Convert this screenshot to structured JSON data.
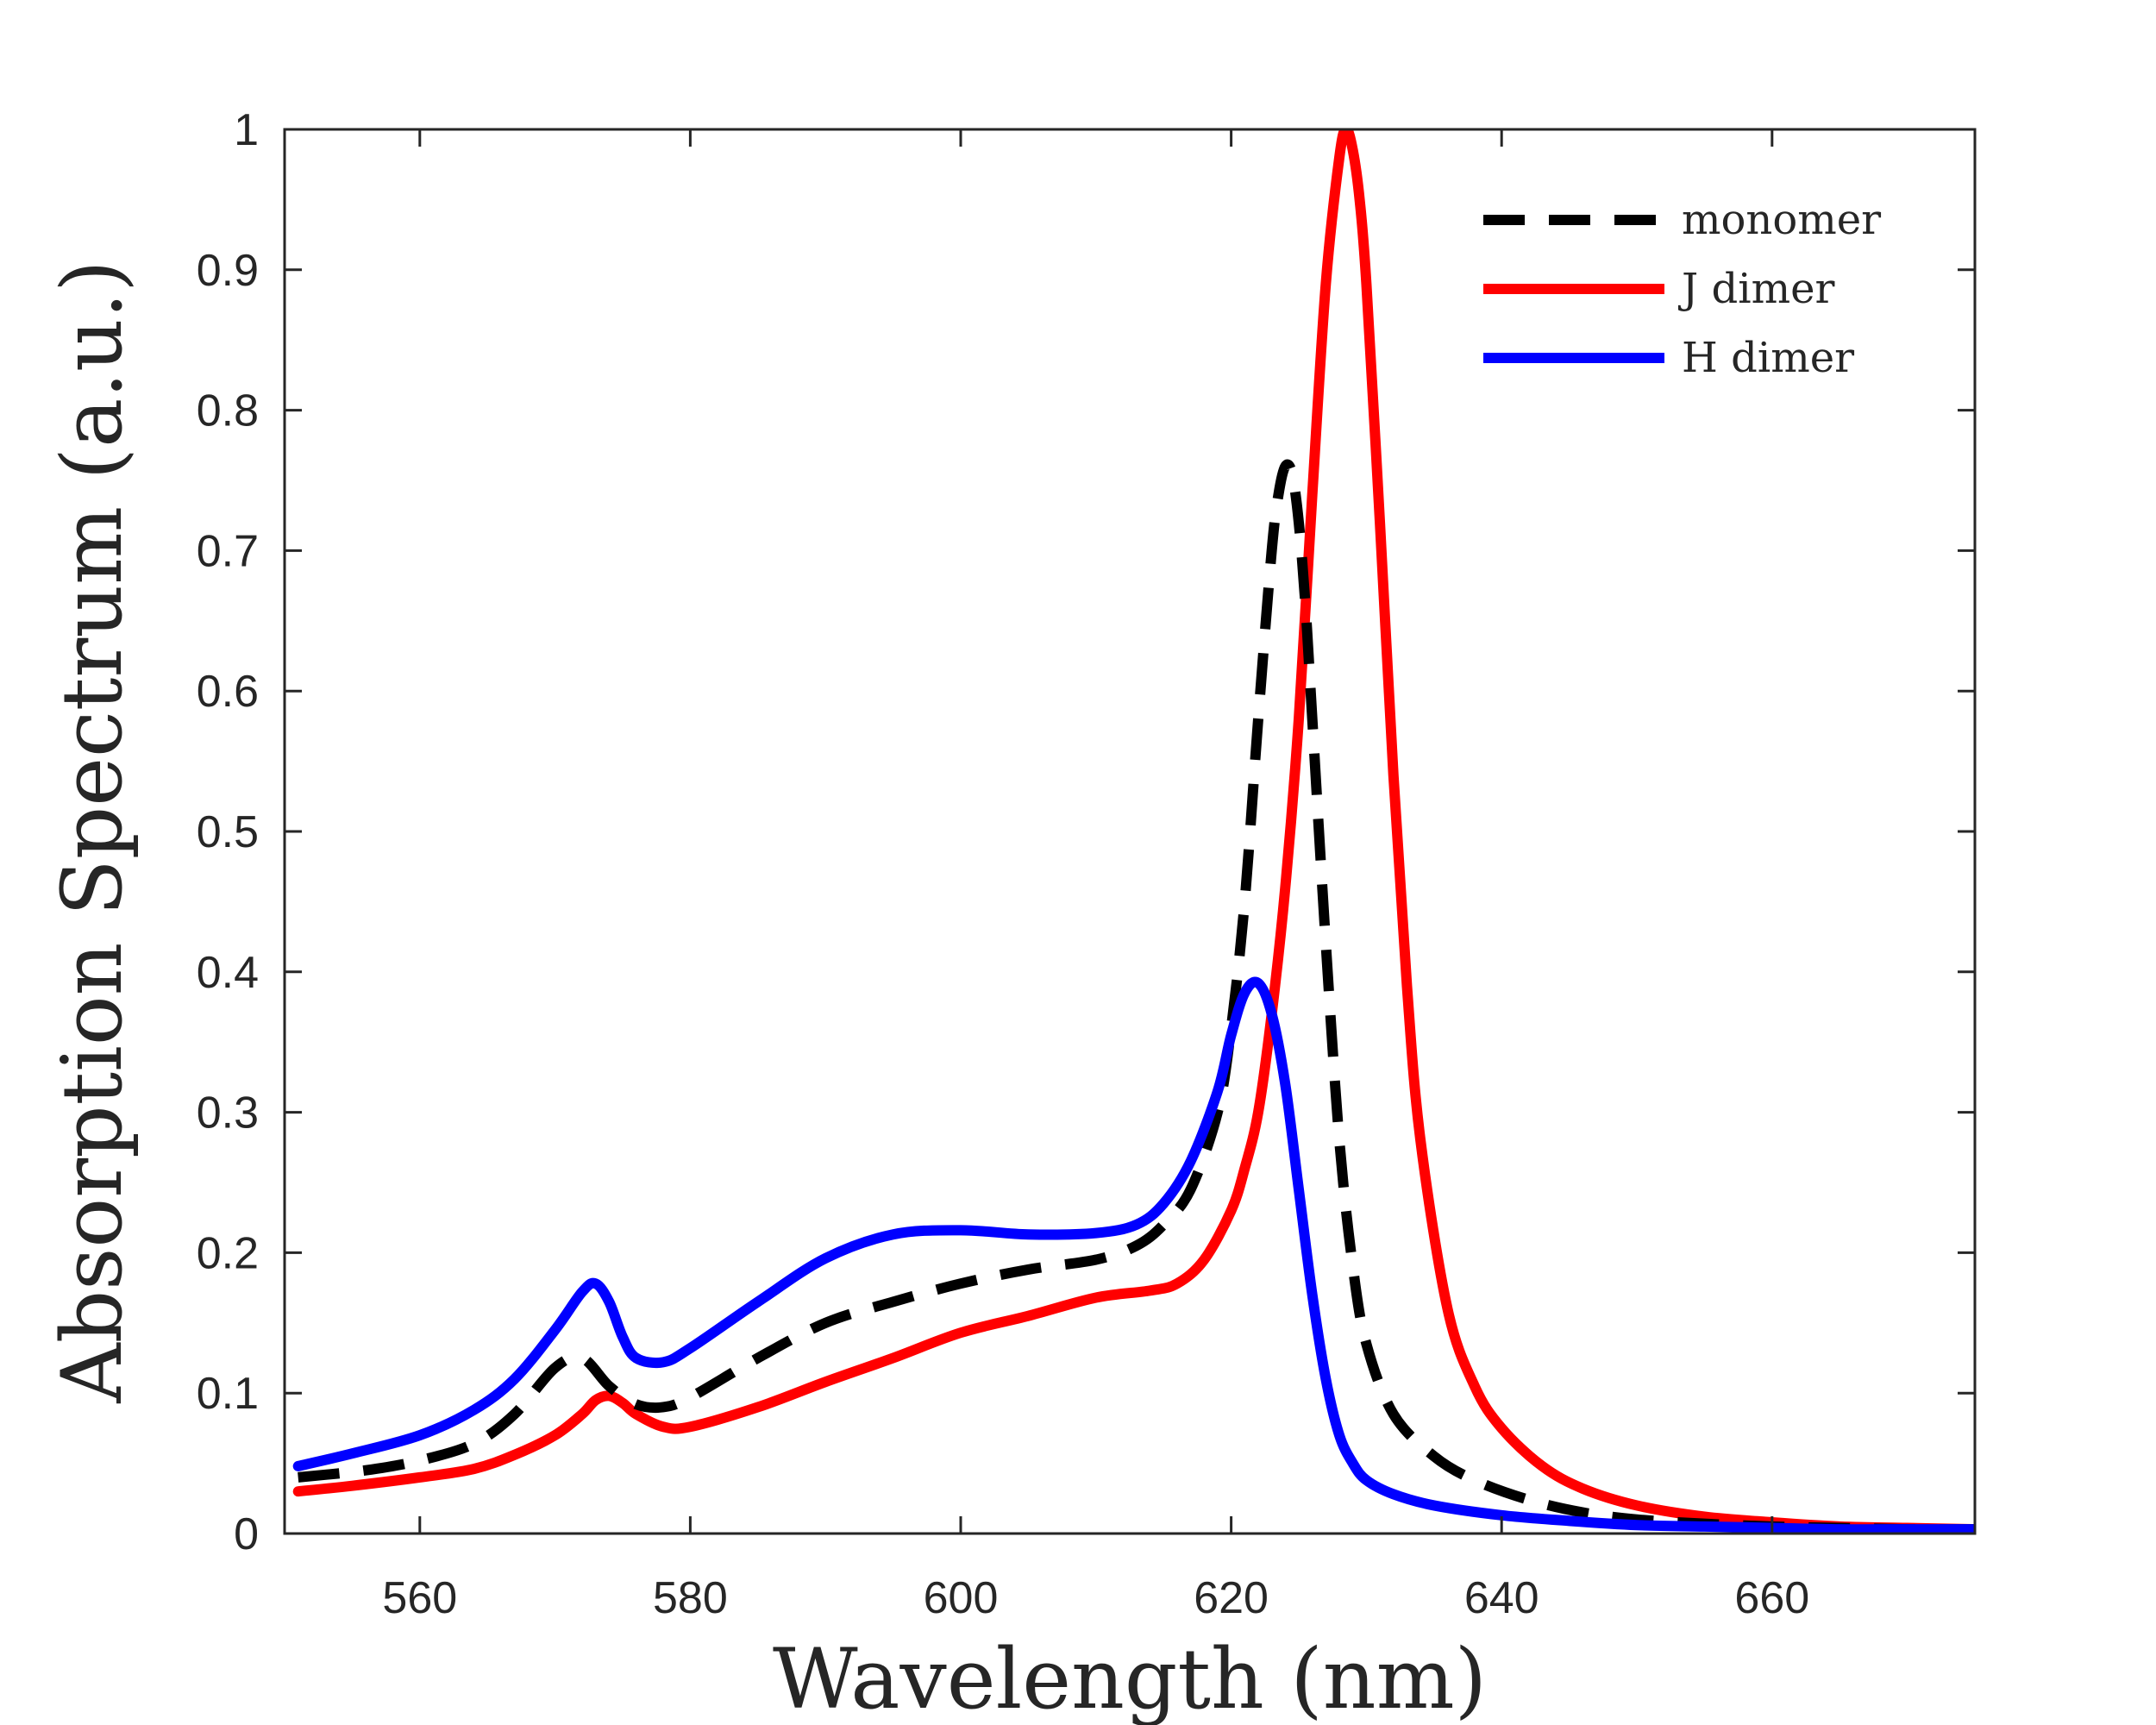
{
  "chart_data": {
    "type": "line",
    "xlabel": "Wavelength (nm)",
    "ylabel": "Absorption Spectrum (a.u.)",
    "xlim": [
      550,
      675
    ],
    "ylim": [
      0,
      1
    ],
    "xticks": [
      560,
      580,
      600,
      620,
      640,
      660
    ],
    "yticks": [
      0,
      0.1,
      0.2,
      0.3,
      0.4,
      0.5,
      0.6,
      0.7,
      0.8,
      0.9,
      1
    ],
    "ytick_labels": [
      "0",
      "0.1",
      "0.2",
      "0.3",
      "0.4",
      "0.5",
      "0.6",
      "0.7",
      "0.8",
      "0.9",
      "1"
    ],
    "grid": false,
    "legend_position": "top-right",
    "series": [
      {
        "name": "monomer",
        "color": "#000000",
        "dash": "dashed",
        "x": [
          551,
          556,
          560,
          564,
          567,
          570,
          572,
          574,
          576,
          578,
          580,
          585,
          590,
          595,
          600,
          605,
          610,
          613,
          615,
          617,
          619,
          620,
          621,
          622,
          623,
          623.5,
          624,
          624.5,
          625,
          625.5,
          626,
          627,
          628,
          629,
          630,
          632,
          635,
          638,
          642,
          646,
          650,
          655,
          660,
          665,
          670,
          675
        ],
        "y": [
          0.04,
          0.045,
          0.052,
          0.064,
          0.085,
          0.118,
          0.125,
          0.105,
          0.092,
          0.09,
          0.097,
          0.125,
          0.15,
          0.165,
          0.178,
          0.188,
          0.195,
          0.205,
          0.22,
          0.245,
          0.3,
          0.36,
          0.45,
          0.58,
          0.7,
          0.74,
          0.76,
          0.755,
          0.72,
          0.66,
          0.58,
          0.42,
          0.28,
          0.19,
          0.135,
          0.085,
          0.055,
          0.038,
          0.024,
          0.015,
          0.01,
          0.007,
          0.005,
          0.004,
          0.003,
          0.003
        ]
      },
      {
        "name": "J dimer",
        "color": "#ff0000",
        "dash": "solid",
        "x": [
          551,
          555,
          560,
          564,
          567,
          570,
          572,
          573,
          574,
          575,
          576,
          578,
          580,
          585,
          590,
          595,
          600,
          605,
          610,
          614,
          616,
          618,
          620,
          621,
          622,
          623,
          624,
          625,
          626,
          627,
          628,
          628.5,
          629,
          629.5,
          630,
          631,
          632,
          633,
          634,
          636,
          638,
          640,
          643,
          646,
          650,
          655,
          660,
          665,
          670,
          675
        ],
        "y": [
          0.03,
          0.034,
          0.04,
          0.046,
          0.056,
          0.07,
          0.085,
          0.095,
          0.098,
          0.093,
          0.085,
          0.076,
          0.076,
          0.09,
          0.108,
          0.125,
          0.143,
          0.155,
          0.168,
          0.173,
          0.178,
          0.195,
          0.23,
          0.26,
          0.3,
          0.37,
          0.46,
          0.58,
          0.74,
          0.89,
          0.98,
          1.0,
          0.985,
          0.95,
          0.89,
          0.72,
          0.54,
          0.39,
          0.28,
          0.16,
          0.105,
          0.075,
          0.048,
          0.032,
          0.02,
          0.012,
          0.008,
          0.005,
          0.004,
          0.003
        ]
      },
      {
        "name": "H dimer",
        "color": "#0000ff",
        "dash": "solid",
        "x": [
          551,
          555,
          560,
          564,
          567,
          570,
          572,
          573,
          574,
          575,
          576,
          578,
          580,
          585,
          590,
          595,
          600,
          605,
          610,
          613,
          615,
          617,
          619,
          620,
          621,
          622,
          623,
          624,
          625,
          626,
          627,
          628,
          629,
          630,
          632,
          635,
          640,
          645,
          650,
          655,
          660,
          665,
          670,
          675
        ],
        "y": [
          0.048,
          0.057,
          0.07,
          0.088,
          0.11,
          0.145,
          0.172,
          0.178,
          0.165,
          0.14,
          0.125,
          0.122,
          0.132,
          0.165,
          0.196,
          0.213,
          0.216,
          0.213,
          0.214,
          0.22,
          0.235,
          0.265,
          0.315,
          0.355,
          0.385,
          0.392,
          0.37,
          0.32,
          0.245,
          0.17,
          0.11,
          0.07,
          0.05,
          0.038,
          0.028,
          0.02,
          0.013,
          0.009,
          0.006,
          0.005,
          0.004,
          0.003,
          0.003,
          0.003
        ]
      }
    ]
  }
}
